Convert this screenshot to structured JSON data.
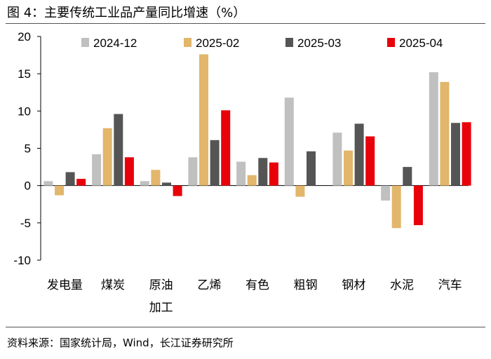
{
  "title": "图 4：主要传统工业品产量同比增速（%）",
  "source": "资料来源：国家统计局，Wind，长江证券研究所",
  "colors": {
    "s2024_12": "#C0C0C0",
    "s2025_02": "#E2B66B",
    "s2025_03": "#555555",
    "s2025_04": "#E8000B"
  },
  "chart_data": {
    "type": "bar",
    "title": "主要传统工业品产量同比增速（%）",
    "xlabel": "",
    "ylabel": "",
    "ylim": [
      -10,
      20
    ],
    "yticks": [
      -10,
      -5,
      0,
      5,
      10,
      15,
      20
    ],
    "categories": [
      [
        "发电量"
      ],
      [
        "煤炭"
      ],
      [
        "原油",
        "加工"
      ],
      [
        "乙烯"
      ],
      [
        "有色"
      ],
      [
        "粗钢"
      ],
      [
        "钢材"
      ],
      [
        "水泥"
      ],
      [
        "汽车"
      ]
    ],
    "series": [
      {
        "name": "2024-12",
        "color": "#C0C0C0",
        "values": [
          0.6,
          4.2,
          0.6,
          3.8,
          3.2,
          11.8,
          7.1,
          -2.0,
          15.2
        ]
      },
      {
        "name": "2025-02",
        "color": "#E2B66B",
        "values": [
          -1.3,
          7.7,
          2.1,
          17.6,
          1.4,
          -1.5,
          4.7,
          -5.7,
          13.9
        ]
      },
      {
        "name": "2025-03",
        "color": "#555555",
        "values": [
          1.8,
          9.6,
          0.4,
          6.1,
          3.7,
          4.6,
          8.3,
          2.5,
          8.4
        ]
      },
      {
        "name": "2025-04",
        "color": "#E8000B",
        "values": [
          0.9,
          3.8,
          -1.4,
          10.1,
          3.1,
          null,
          6.6,
          -5.3,
          8.5
        ]
      }
    ]
  }
}
